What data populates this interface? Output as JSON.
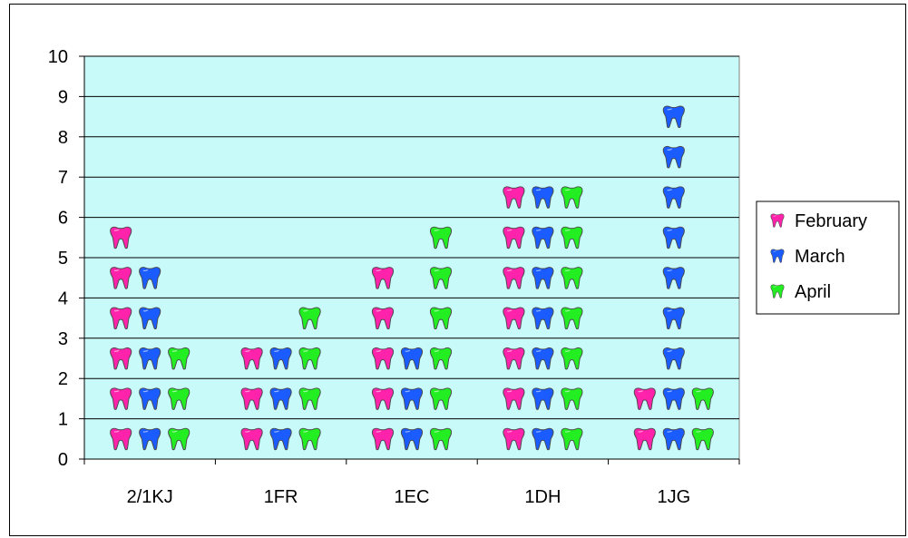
{
  "chart_data": {
    "type": "bar",
    "style": "pictograph",
    "icon": "tooth-icon",
    "categories": [
      "2/1KJ",
      "1FR",
      "1EC",
      "1DH",
      "1JG"
    ],
    "series": [
      {
        "name": "February",
        "color": "#ff22aa",
        "values": [
          6,
          3,
          5,
          7,
          2
        ]
      },
      {
        "name": "March",
        "color": "#1a5cff",
        "values": [
          5,
          3,
          3,
          7,
          9
        ]
      },
      {
        "name": "April",
        "color": "#22ee22",
        "values": [
          3,
          4,
          6,
          7,
          2
        ]
      }
    ],
    "ylim": [
      0,
      10
    ],
    "yticks": [
      "0",
      "1",
      "2",
      "3",
      "4",
      "5",
      "6",
      "7",
      "8",
      "9",
      "10"
    ],
    "grid": true,
    "plot_background": "#c8fafa",
    "legend_position": "right"
  }
}
